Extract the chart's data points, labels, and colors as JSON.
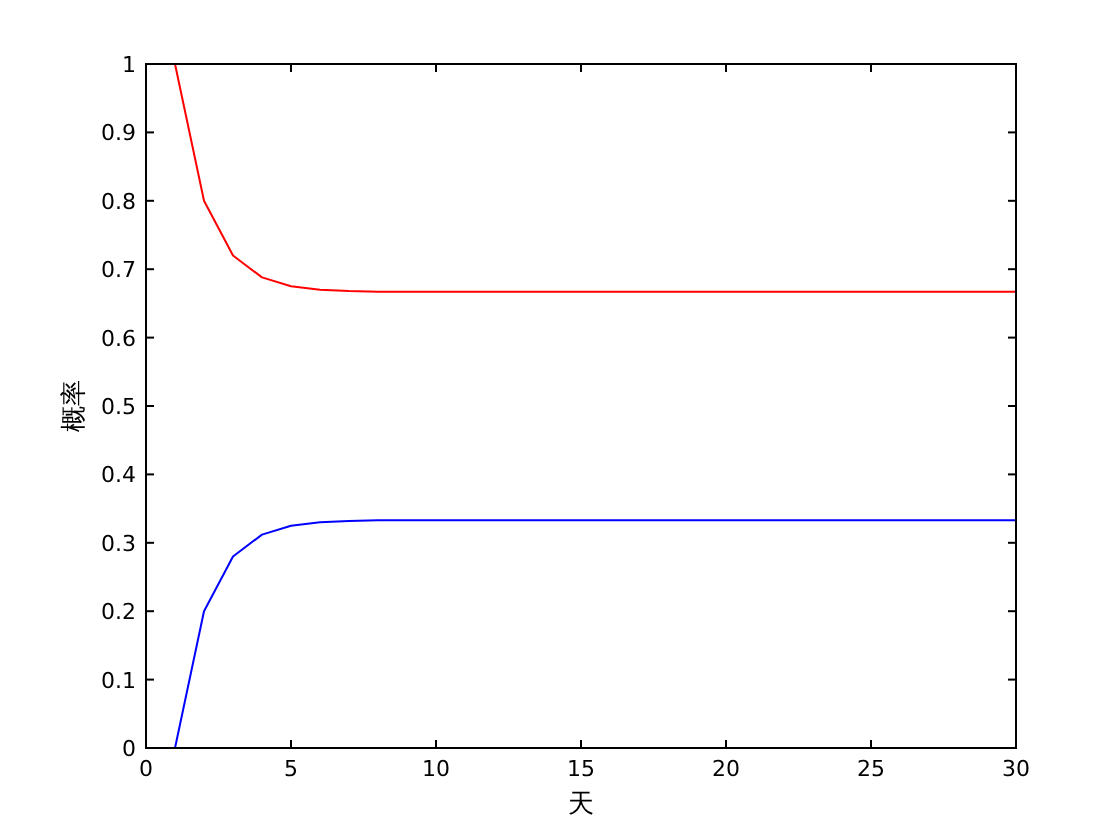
{
  "chart_data": {
    "type": "line",
    "xlabel": "天",
    "ylabel": "概率",
    "x": [
      1,
      2,
      3,
      4,
      5,
      6,
      7,
      8,
      30
    ],
    "series": [
      {
        "color": "#ff0000",
        "values": [
          1,
          0.8,
          0.72,
          0.688,
          0.675,
          0.67,
          0.668,
          0.667,
          0.667
        ]
      },
      {
        "color": "#0000ff",
        "values": [
          0,
          0.2,
          0.28,
          0.312,
          0.325,
          0.33,
          0.332,
          0.333,
          0.333
        ]
      }
    ],
    "xlim": [
      0,
      30
    ],
    "xticks": [
      0,
      5,
      10,
      15,
      20,
      25,
      30
    ],
    "ylim": [
      0,
      1
    ],
    "yticks": [
      0,
      0.1,
      0.2,
      0.3,
      0.4,
      0.5,
      0.6,
      0.7,
      0.8,
      0.9,
      1
    ],
    "grid": false,
    "marker": "none",
    "line_style": "solid"
  }
}
